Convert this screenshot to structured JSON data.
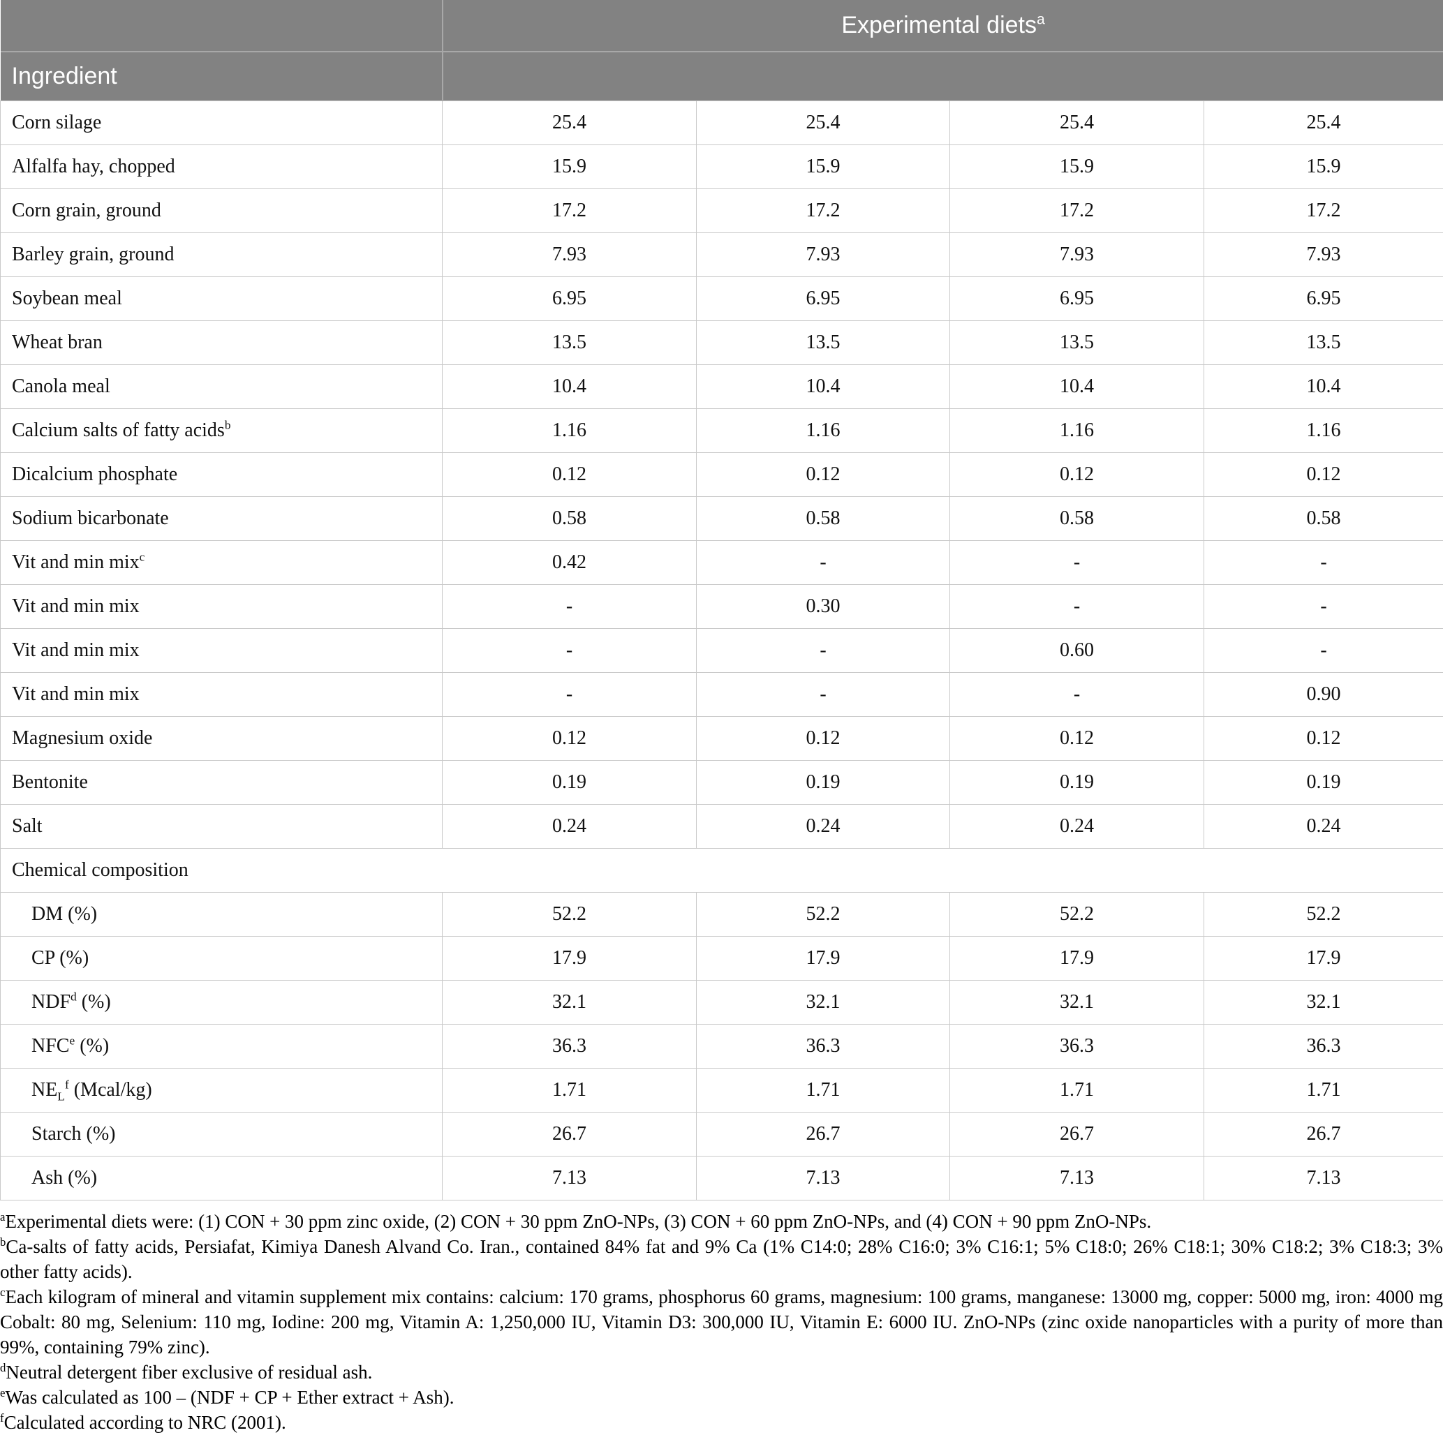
{
  "colors": {
    "header_bg": "#828282",
    "header_text": "#ffffff",
    "header_divider": "#a8a8a8",
    "row_border": "#c9c9c9"
  },
  "table": {
    "header": {
      "diets_label": {
        "text": "Experimental diets",
        "sup": "a"
      },
      "ingredient_label": "Ingredient",
      "num_diet_columns": 4
    },
    "ingredient_rows": [
      {
        "label": [
          [
            "t",
            "Corn silage"
          ]
        ],
        "values": [
          "25.4",
          "25.4",
          "25.4",
          "25.4"
        ]
      },
      {
        "label": [
          [
            "t",
            "Alfalfa hay, chopped"
          ]
        ],
        "values": [
          "15.9",
          "15.9",
          "15.9",
          "15.9"
        ]
      },
      {
        "label": [
          [
            "t",
            "Corn grain, ground"
          ]
        ],
        "values": [
          "17.2",
          "17.2",
          "17.2",
          "17.2"
        ]
      },
      {
        "label": [
          [
            "t",
            "Barley grain, ground"
          ]
        ],
        "values": [
          "7.93",
          "7.93",
          "7.93",
          "7.93"
        ]
      },
      {
        "label": [
          [
            "t",
            "Soybean meal"
          ]
        ],
        "values": [
          "6.95",
          "6.95",
          "6.95",
          "6.95"
        ]
      },
      {
        "label": [
          [
            "t",
            "Wheat bran"
          ]
        ],
        "values": [
          "13.5",
          "13.5",
          "13.5",
          "13.5"
        ]
      },
      {
        "label": [
          [
            "t",
            "Canola meal"
          ]
        ],
        "values": [
          "10.4",
          "10.4",
          "10.4",
          "10.4"
        ]
      },
      {
        "label": [
          [
            "t",
            "Calcium salts of fatty acids"
          ],
          [
            "sup",
            "b"
          ]
        ],
        "values": [
          "1.16",
          "1.16",
          "1.16",
          "1.16"
        ]
      },
      {
        "label": [
          [
            "t",
            "Dicalcium phosphate"
          ]
        ],
        "values": [
          "0.12",
          "0.12",
          "0.12",
          "0.12"
        ]
      },
      {
        "label": [
          [
            "t",
            "Sodium bicarbonate"
          ]
        ],
        "values": [
          "0.58",
          "0.58",
          "0.58",
          "0.58"
        ]
      },
      {
        "label": [
          [
            "t",
            "Vit and min mix"
          ],
          [
            "sup",
            "c"
          ]
        ],
        "values": [
          "0.42",
          "-",
          "-",
          "-"
        ]
      },
      {
        "label": [
          [
            "t",
            "Vit and min mix"
          ]
        ],
        "values": [
          "-",
          "0.30",
          "-",
          "-"
        ]
      },
      {
        "label": [
          [
            "t",
            "Vit and min mix"
          ]
        ],
        "values": [
          "-",
          "-",
          "0.60",
          "-"
        ]
      },
      {
        "label": [
          [
            "t",
            "Vit and min mix"
          ]
        ],
        "values": [
          "-",
          "-",
          "-",
          "0.90"
        ]
      },
      {
        "label": [
          [
            "t",
            "Magnesium oxide"
          ]
        ],
        "values": [
          "0.12",
          "0.12",
          "0.12",
          "0.12"
        ]
      },
      {
        "label": [
          [
            "t",
            "Bentonite"
          ]
        ],
        "values": [
          "0.19",
          "0.19",
          "0.19",
          "0.19"
        ]
      },
      {
        "label": [
          [
            "t",
            "Salt"
          ]
        ],
        "values": [
          "0.24",
          "0.24",
          "0.24",
          "0.24"
        ]
      }
    ],
    "section_label": "Chemical composition",
    "composition_rows": [
      {
        "label": [
          [
            "t",
            "DM (%)"
          ]
        ],
        "values": [
          "52.2",
          "52.2",
          "52.2",
          "52.2"
        ]
      },
      {
        "label": [
          [
            "t",
            "CP (%)"
          ]
        ],
        "values": [
          "17.9",
          "17.9",
          "17.9",
          "17.9"
        ]
      },
      {
        "label": [
          [
            "t",
            "NDF"
          ],
          [
            "sup",
            "d"
          ],
          [
            "t",
            " (%)"
          ]
        ],
        "values": [
          "32.1",
          "32.1",
          "32.1",
          "32.1"
        ]
      },
      {
        "label": [
          [
            "t",
            "NFC"
          ],
          [
            "sup",
            "e"
          ],
          [
            "t",
            " (%)"
          ]
        ],
        "values": [
          "36.3",
          "36.3",
          "36.3",
          "36.3"
        ]
      },
      {
        "label": [
          [
            "t",
            "NE"
          ],
          [
            "sub",
            "L"
          ],
          [
            "sup",
            "f"
          ],
          [
            "t",
            " (Mcal/kg)"
          ]
        ],
        "values": [
          "1.71",
          "1.71",
          "1.71",
          "1.71"
        ]
      },
      {
        "label": [
          [
            "t",
            "Starch (%)"
          ]
        ],
        "values": [
          "26.7",
          "26.7",
          "26.7",
          "26.7"
        ]
      },
      {
        "label": [
          [
            "t",
            "Ash (%)"
          ]
        ],
        "values": [
          "7.13",
          "7.13",
          "7.13",
          "7.13"
        ]
      }
    ]
  },
  "footnotes": [
    {
      "sup": "a",
      "text": "Experimental diets were: (1) CON + 30 ppm zinc oxide, (2) CON + 30 ppm ZnO-NPs, (3) CON + 60 ppm ZnO-NPs, and (4) CON + 90 ppm ZnO-NPs."
    },
    {
      "sup": "b",
      "text": "Ca-salts of fatty acids, Persiafat, Kimiya Danesh Alvand Co. Iran., contained 84% fat and 9% Ca (1% C14:0; 28% C16:0; 3% C16:1; 5% C18:0; 26% C18:1; 30% C18:2; 3% C18:3; 3% other fatty acids)."
    },
    {
      "sup": "c",
      "text": "Each kilogram of mineral and vitamin supplement mix contains: calcium: 170 grams, phosphorus 60 grams, magnesium: 100 grams, manganese: 13000 mg, copper: 5000 mg, iron: 4000 mg Cobalt: 80 mg, Selenium: 110 mg, Iodine: 200 mg, Vitamin A: 1,250,000 IU, Vitamin D3: 300,000 IU, Vitamin E: 6000 IU. ZnO-NPs (zinc oxide nanoparticles with a purity of more than 99%, containing 79% zinc)."
    },
    {
      "sup": "d",
      "text": "Neutral detergent fiber exclusive of residual ash."
    },
    {
      "sup": "e",
      "text": "Was calculated as 100 – (NDF + CP + Ether extract + Ash)."
    },
    {
      "sup": "f",
      "text": "Calculated according to NRC (2001)."
    }
  ]
}
